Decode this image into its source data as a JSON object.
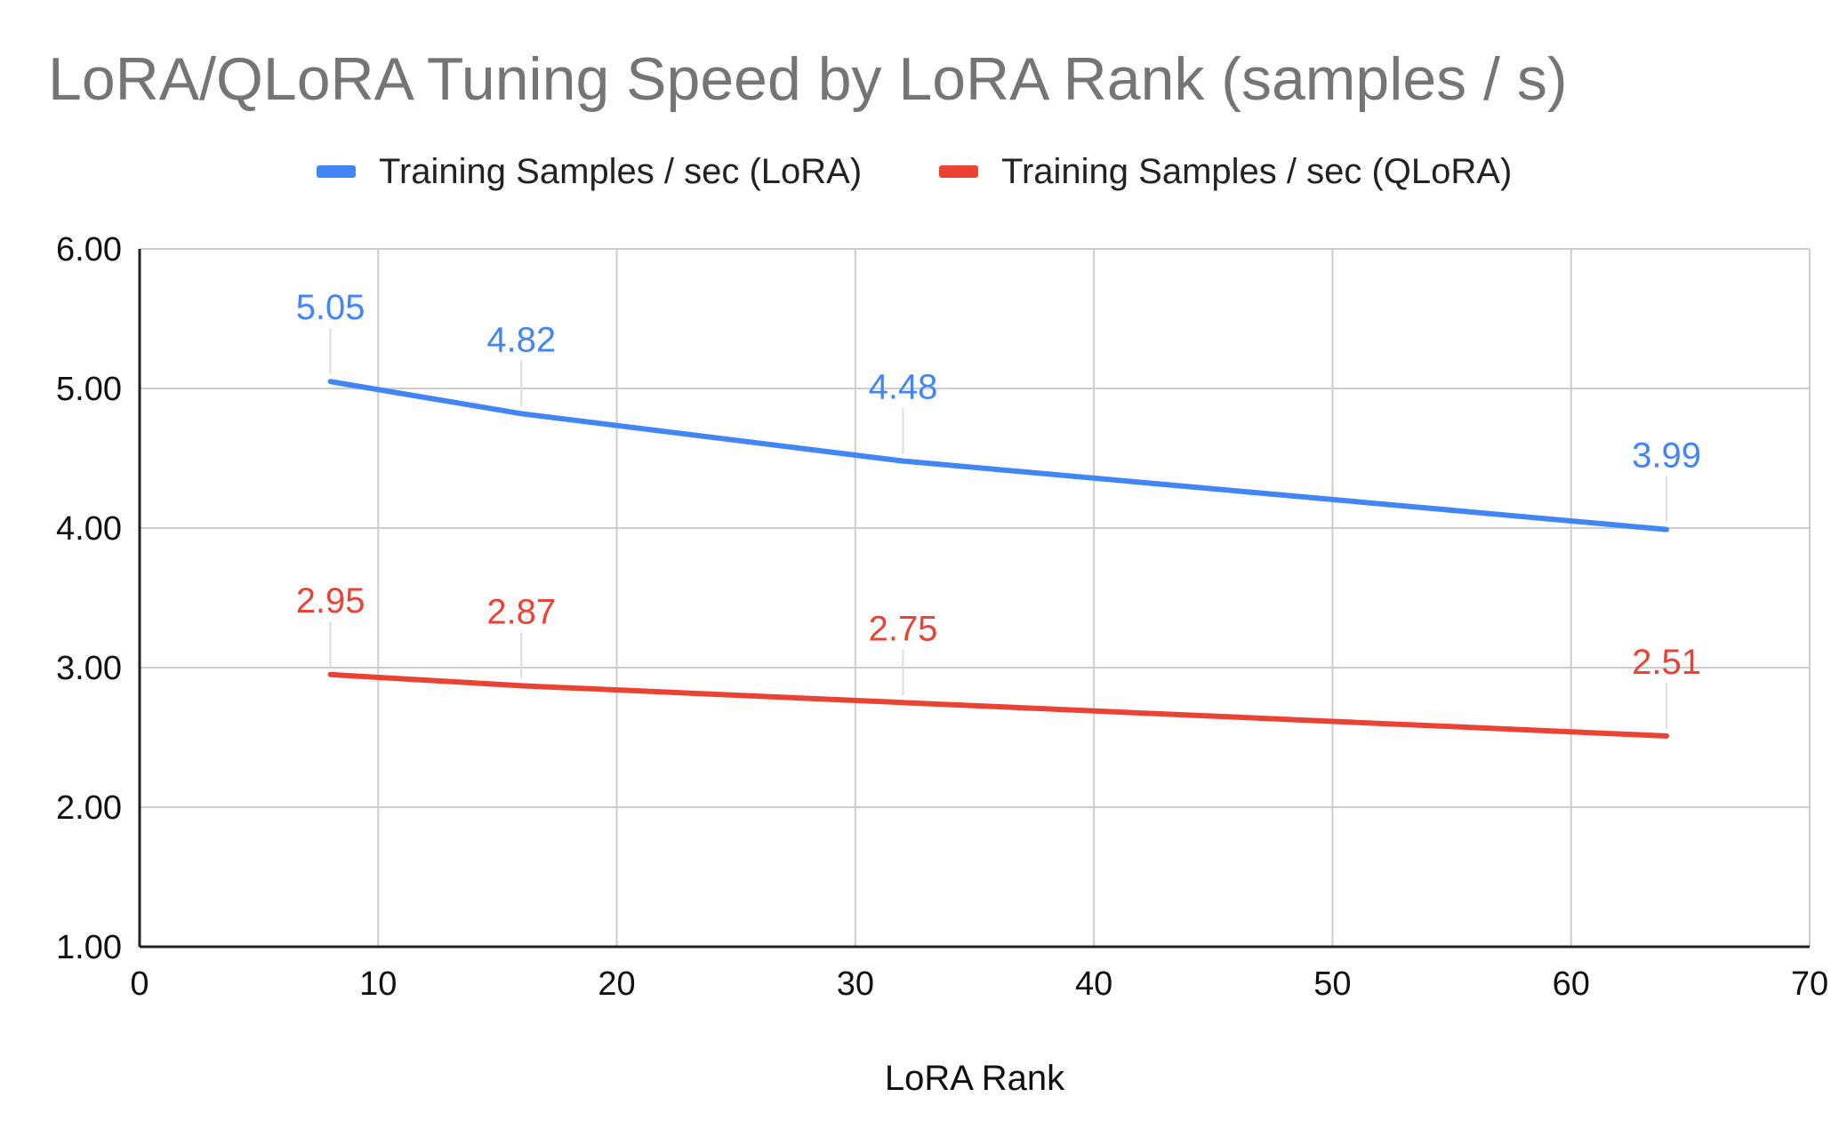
{
  "chart_data": {
    "type": "line",
    "title": "LoRA/QLoRA Tuning Speed by LoRA Rank (samples / s)",
    "xlabel": "LoRA Rank",
    "ylabel": "",
    "x": [
      8,
      16,
      32,
      64
    ],
    "xlim": [
      0,
      70
    ],
    "ylim": [
      1,
      6
    ],
    "x_ticks": [
      "0",
      "10",
      "20",
      "30",
      "40",
      "50",
      "60",
      "70"
    ],
    "y_ticks": [
      "1.00",
      "2.00",
      "3.00",
      "4.00",
      "5.00",
      "6.00"
    ],
    "grid": true,
    "legend_position": "top",
    "series": [
      {
        "name": "Training Samples / sec (LoRA)",
        "color": "#4285f4",
        "values": [
          5.05,
          4.82,
          4.48,
          3.99
        ],
        "labels": [
          "5.05",
          "4.82",
          "4.48",
          "3.99"
        ]
      },
      {
        "name": "Training Samples / sec (QLoRA)",
        "color": "#ea4335",
        "values": [
          2.95,
          2.87,
          2.75,
          2.51
        ],
        "labels": [
          "2.95",
          "2.87",
          "2.75",
          "2.51"
        ]
      }
    ]
  }
}
